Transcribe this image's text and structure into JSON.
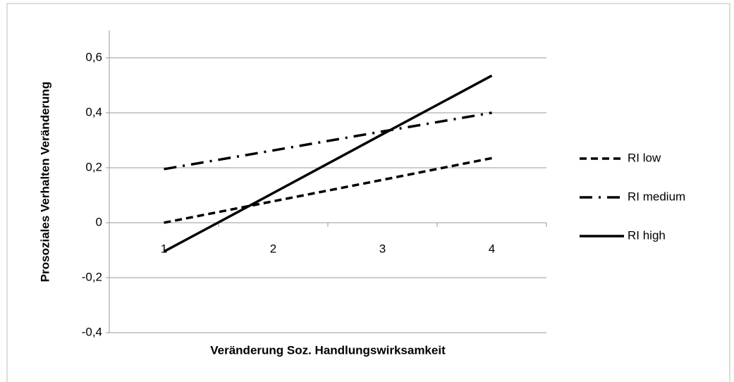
{
  "chart_data": {
    "type": "line",
    "x_label": "Veränderung Soz. Handlungswirksamkeit",
    "y_label": "Prosoziales Verhalten Veränderung",
    "categories": [
      "1",
      "2",
      "3",
      "4"
    ],
    "series": [
      {
        "name": "RI low",
        "color": "#000000",
        "dash": "dashed",
        "values": [
          0,
          0.078,
          0.156,
          0.235
        ]
      },
      {
        "name": "RI medium",
        "color": "#000000",
        "dash": "dashdot",
        "values": [
          0.195,
          0.263,
          0.332,
          0.4
        ]
      },
      {
        "name": "RI high",
        "color": "#000000",
        "dash": "solid",
        "values": [
          -0.105,
          0.108,
          0.322,
          0.535
        ]
      }
    ],
    "ylim": [
      -0.4,
      0.7
    ],
    "yticks": [
      {
        "value": -0.4,
        "label": "-0,4"
      },
      {
        "value": -0.2,
        "label": "-0,2"
      },
      0,
      {
        "value": 0.2,
        "label": "0,2"
      },
      {
        "value": 0.4,
        "label": "0,4"
      },
      {
        "value": 0.6,
        "label": "0,6"
      }
    ],
    "grid": true,
    "legend": "right"
  }
}
